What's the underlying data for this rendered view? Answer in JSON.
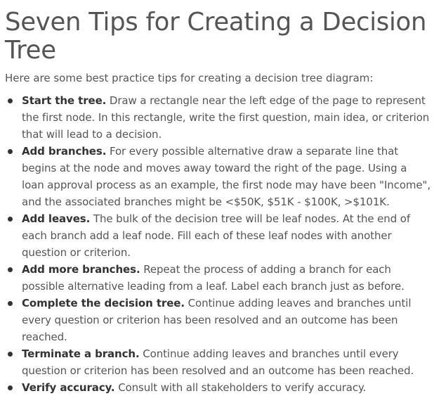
{
  "title": "Seven Tips for Creating a Decision Tree",
  "intro": "Here are some best practice tips for creating a decision tree diagram:",
  "tips": [
    {
      "title": "Start the tree.",
      "text": " Draw a rectangle near the left edge of the page to represent the first node. In this rectangle, write the first question, main idea, or criterion that will lead to a decision."
    },
    {
      "title": "Add branches.",
      "text": " For every possible alternative draw a separate line that begins at the node and moves away toward the right of the page. Using a loan approval process as an example, the first node may have been \"Income\", and the associated branches might be <$50K, $51K - $100K, >$101K."
    },
    {
      "title": "Add leaves.",
      "text": " The bulk of the decision tree will be leaf nodes. At the end of each branch add a leaf node. Fill each of these leaf nodes with another question or criterion."
    },
    {
      "title": "Add more branches.",
      "text": " Repeat the process of adding a branch for each possible alternative leading from a leaf. Label each branch just as before."
    },
    {
      "title": "Complete the decision tree.",
      "text": " Continue adding leaves and branches until every question or criterion has been resolved and an outcome has been reached."
    },
    {
      "title": "Terminate a branch.",
      "text": " Continue adding leaves and branches until every question or criterion has been resolved and an outcome has been reached."
    },
    {
      "title": "Verify accuracy.",
      "text": " Consult with all stakeholders to verify accuracy."
    }
  ]
}
